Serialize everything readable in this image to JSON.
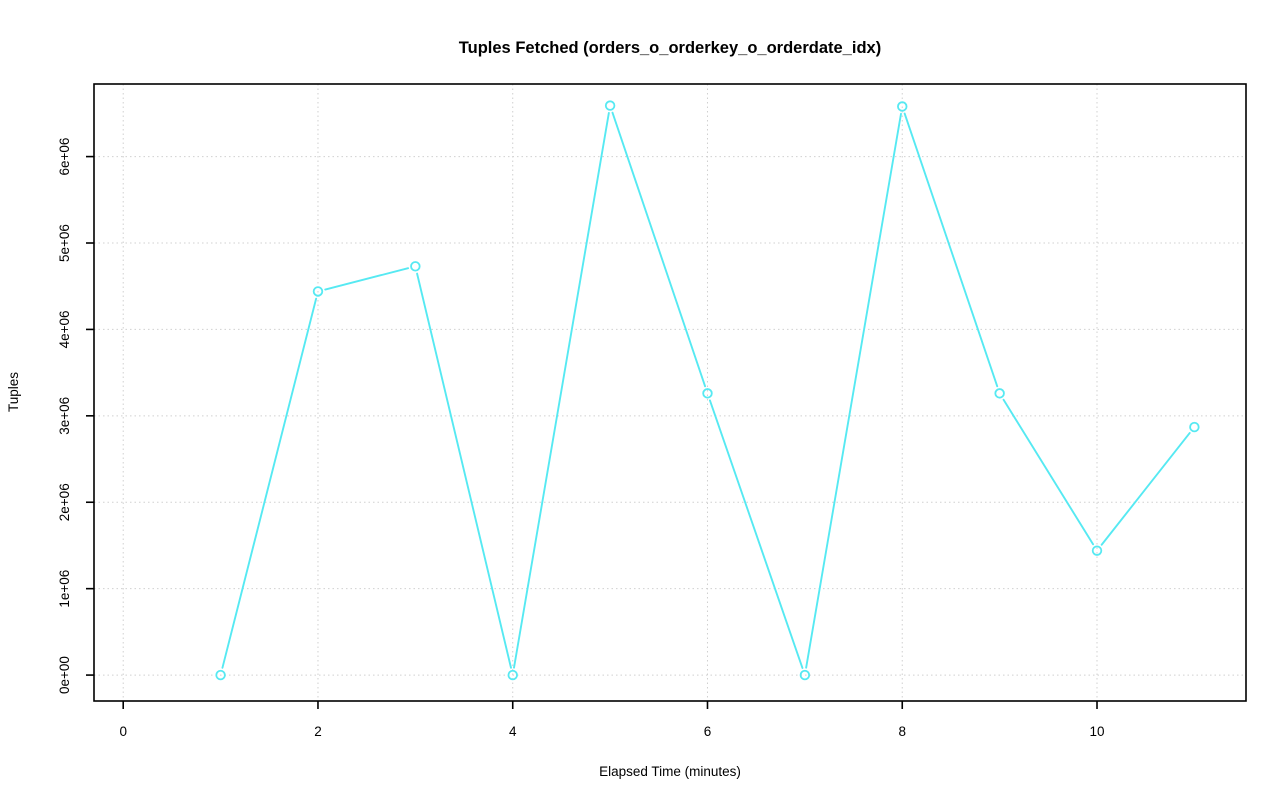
{
  "chart_data": {
    "type": "line",
    "title": "Tuples Fetched (orders_o_orderkey_o_orderdate_idx)",
    "xlabel": "Elapsed Time (minutes)",
    "ylabel": "Tuples",
    "x": [
      1,
      2,
      3,
      4,
      5,
      6,
      7,
      8,
      9,
      10,
      11
    ],
    "y": [
      0,
      4440000,
      4730000,
      0,
      6590000,
      3260000,
      0,
      6580000,
      3260000,
      1440000,
      2870000
    ],
    "series_name": "tuples_fetched",
    "x_ticks": {
      "values": [
        0,
        2,
        4,
        6,
        8,
        10
      ],
      "labels": [
        "0",
        "2",
        "4",
        "6",
        "8",
        "10"
      ]
    },
    "y_ticks": {
      "values": [
        0,
        1000000,
        2000000,
        3000000,
        4000000,
        5000000,
        6000000
      ],
      "labels": [
        "0e+00",
        "1e+06",
        "2e+06",
        "3e+06",
        "4e+06",
        "5e+06",
        "6e+06"
      ]
    },
    "xlim": [
      -0.3,
      11.53
    ],
    "ylim": [
      -300000,
      6840000
    ],
    "grid": true,
    "grid_style": "dotted",
    "marker": "open-circle",
    "line_style": "segments-with-gaps-at-points",
    "legend": "none",
    "colors": {
      "line": "#56e9f2",
      "marker": "#56e9f2",
      "grid": "#d0d0d0",
      "axis": "#000000",
      "text": "#000000",
      "background": "#ffffff"
    }
  }
}
